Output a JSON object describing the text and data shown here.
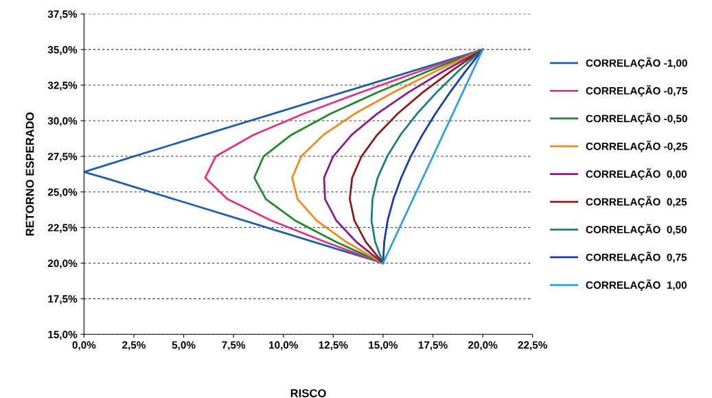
{
  "chart_data": {
    "type": "line",
    "xlabel": "RISCO",
    "ylabel": "RETORNO ESPERADO",
    "grid": "y",
    "legend": "right",
    "marker": "none",
    "line_style": "solid",
    "xlim": [
      0,
      22.5
    ],
    "ylim": [
      15,
      37.5
    ],
    "xticks": [
      {
        "value": 0,
        "label": "0,0%"
      },
      {
        "value": 2.5,
        "label": "2,5%"
      },
      {
        "value": 5,
        "label": "5,0%"
      },
      {
        "value": 7.5,
        "label": "7,5%"
      },
      {
        "value": 10,
        "label": "10,0%"
      },
      {
        "value": 12.5,
        "label": "12,5%"
      },
      {
        "value": 15,
        "label": "15,0%"
      },
      {
        "value": 17.5,
        "label": "17,5%"
      },
      {
        "value": 20,
        "label": "20,0%"
      },
      {
        "value": 22.5,
        "label": "22,5%"
      }
    ],
    "yticks": [
      {
        "value": 15,
        "label": "15,0%"
      },
      {
        "value": 17.5,
        "label": "17,5%"
      },
      {
        "value": 20,
        "label": "20,0%"
      },
      {
        "value": 22.5,
        "label": "22,5%"
      },
      {
        "value": 25,
        "label": "25,0%"
      },
      {
        "value": 27.5,
        "label": "27,5%"
      },
      {
        "value": 30,
        "label": "30,0%"
      },
      {
        "value": 32.5,
        "label": "32,5%"
      },
      {
        "value": 35,
        "label": "35,0%"
      },
      {
        "value": 37.5,
        "label": "37,5%"
      }
    ],
    "series": [
      {
        "name": "CORRELAÇÃO -1,00",
        "color": "#1f5fa8",
        "x": [
          15,
          11.5,
          8,
          4.5,
          1,
          0,
          2.5,
          6,
          9.5,
          13,
          16.5,
          20
        ],
        "values": [
          20,
          21.5,
          23,
          24.5,
          26,
          26.4,
          27.5,
          29,
          30.5,
          32,
          33.5,
          35
        ]
      },
      {
        "name": "CORRELAÇÃO -0,75",
        "color": "#e0308a",
        "x": [
          15,
          12.07,
          9.38,
          7.19,
          6.08,
          6.61,
          8.49,
          11.03,
          13.89,
          16.9,
          20
        ],
        "values": [
          20,
          21.5,
          23,
          24.5,
          26,
          27.5,
          29,
          30.5,
          32,
          33.5,
          35
        ]
      },
      {
        "name": "CORRELAÇÃO -0,50",
        "color": "#1e8a2a",
        "x": [
          15,
          12.62,
          10.58,
          9.12,
          8.54,
          9.01,
          10.39,
          12.38,
          14.73,
          17.3,
          20
        ],
        "values": [
          20,
          21.5,
          23,
          24.5,
          26,
          27.5,
          29,
          30.5,
          32,
          33.5,
          35
        ]
      },
      {
        "name": "CORRELAÇÃO -0,25",
        "color": "#f08a1e",
        "x": [
          15,
          13.14,
          11.66,
          10.71,
          10.44,
          10.9,
          12,
          13.59,
          15.52,
          17.68,
          20
        ],
        "values": [
          20,
          21.5,
          23,
          24.5,
          26,
          27.5,
          29,
          30.5,
          32,
          33.5,
          35
        ]
      },
      {
        "name": "CORRELAÇÃO  0,00",
        "color": "#8b1a8b",
        "x": [
          15,
          13.65,
          12.65,
          12.09,
          12.04,
          12.5,
          13.42,
          14.71,
          16.28,
          18.06,
          20
        ],
        "values": [
          20,
          21.5,
          23,
          24.5,
          26,
          27.5,
          29,
          30.5,
          32,
          33.5,
          35
        ]
      },
      {
        "name": "CORRELAÇÃO  0,25",
        "color": "#8b1a1a",
        "x": [
          15,
          14.13,
          13.56,
          13.33,
          13.45,
          13.92,
          14.7,
          15.74,
          17,
          18.43,
          20
        ],
        "values": [
          20,
          21.5,
          23,
          24.5,
          26,
          27.5,
          29,
          30.5,
          32,
          33.5,
          35
        ]
      },
      {
        "name": "CORRELAÇÃO  0,50",
        "color": "#1a7f7a",
        "x": [
          15,
          14.6,
          14.42,
          14.47,
          14.73,
          15.21,
          15.87,
          16.71,
          17.69,
          18.79,
          20
        ],
        "values": [
          20,
          21.5,
          23,
          24.5,
          26,
          27.5,
          29,
          30.5,
          32,
          33.5,
          35
        ]
      },
      {
        "name": "CORRELAÇÃO  0,75",
        "color": "#1a3aa8",
        "x": [
          15,
          15.06,
          15.23,
          15.52,
          15.91,
          16.39,
          16.97,
          17.63,
          18.36,
          19.15,
          20
        ],
        "values": [
          20,
          21.5,
          23,
          24.5,
          26,
          27.5,
          29,
          30.5,
          32,
          33.5,
          35
        ]
      },
      {
        "name": "CORRELAÇÃO  1,00",
        "color": "#30a0e0",
        "x": [
          15,
          15.5,
          16,
          16.5,
          17,
          17.5,
          18,
          18.5,
          19,
          19.5,
          20
        ],
        "values": [
          20,
          21.5,
          23,
          24.5,
          26,
          27.5,
          29,
          30.5,
          32,
          33.5,
          35
        ]
      }
    ]
  }
}
